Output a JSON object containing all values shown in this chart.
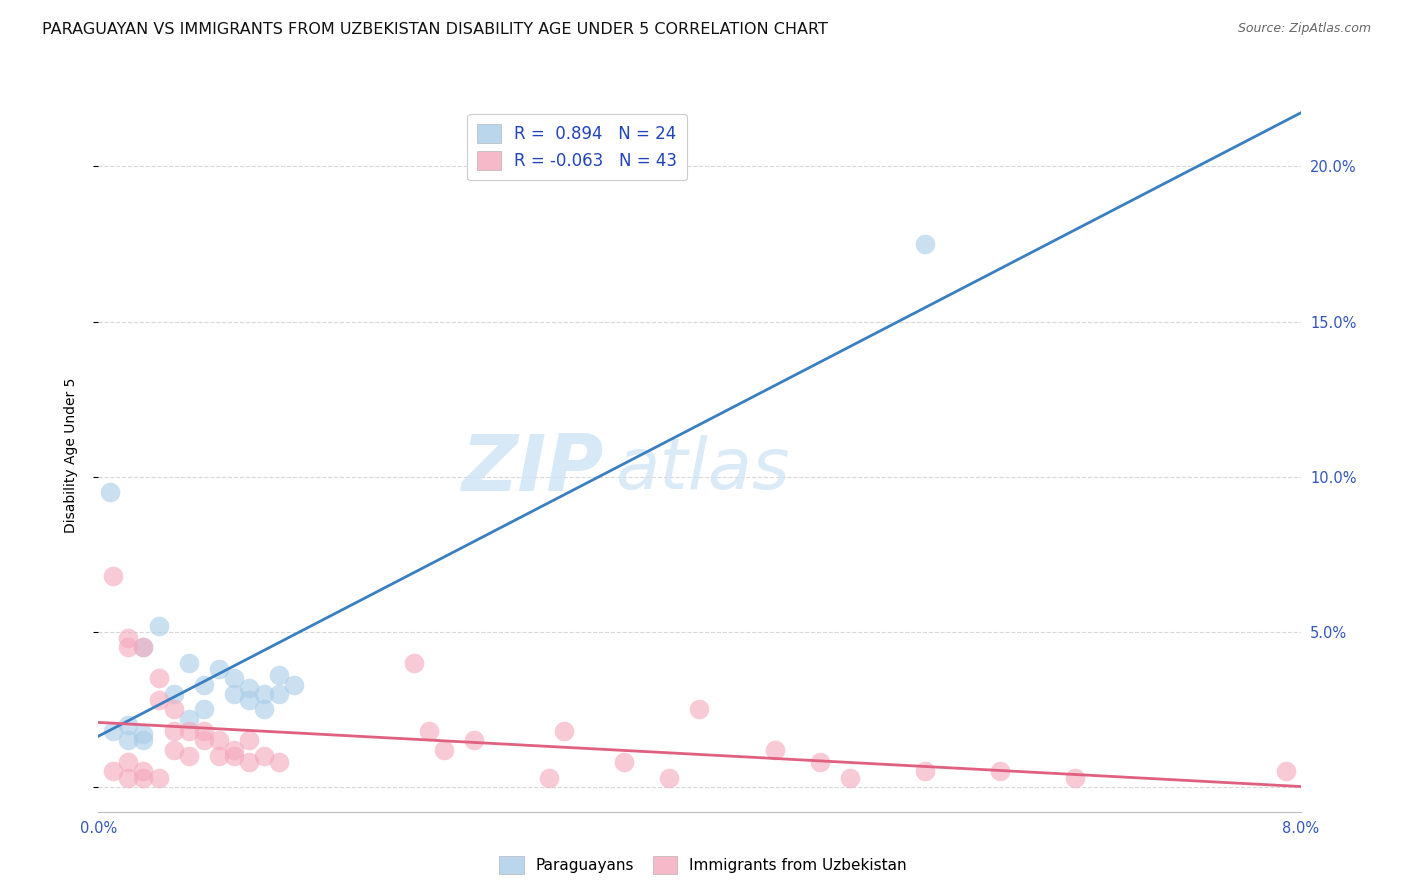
{
  "title": "PARAGUAYAN VS IMMIGRANTS FROM UZBEKISTAN DISABILITY AGE UNDER 5 CORRELATION CHART",
  "source": "Source: ZipAtlas.com",
  "ylabel": "Disability Age Under 5",
  "right_yticks": [
    "",
    "5.0%",
    "10.0%",
    "15.0%",
    "20.0%"
  ],
  "right_ytick_vals": [
    0.0,
    0.05,
    0.1,
    0.15,
    0.2
  ],
  "xlim": [
    0.0,
    0.08
  ],
  "ylim": [
    -0.008,
    0.222
  ],
  "watermark_line1": "ZIP",
  "watermark_line2": "atlas",
  "legend_labels": [
    "Paraguayans",
    "Immigrants from Uzbekistan"
  ],
  "blue_color": "#a8cce8",
  "pink_color": "#f4a8bc",
  "blue_line_color": "#3a7fc1",
  "pink_line_color": "#e06080",
  "blue_scatter": [
    [
      0.0008,
      0.095
    ],
    [
      0.003,
      0.045
    ],
    [
      0.004,
      0.052
    ],
    [
      0.005,
      0.03
    ],
    [
      0.006,
      0.04
    ],
    [
      0.006,
      0.022
    ],
    [
      0.007,
      0.025
    ],
    [
      0.007,
      0.033
    ],
    [
      0.008,
      0.038
    ],
    [
      0.009,
      0.03
    ],
    [
      0.009,
      0.035
    ],
    [
      0.01,
      0.028
    ],
    [
      0.01,
      0.032
    ],
    [
      0.011,
      0.025
    ],
    [
      0.011,
      0.03
    ],
    [
      0.012,
      0.036
    ],
    [
      0.012,
      0.03
    ],
    [
      0.013,
      0.033
    ],
    [
      0.001,
      0.018
    ],
    [
      0.002,
      0.015
    ],
    [
      0.002,
      0.02
    ],
    [
      0.003,
      0.015
    ],
    [
      0.003,
      0.017
    ],
    [
      0.055,
      0.175
    ]
  ],
  "pink_scatter": [
    [
      0.001,
      0.068
    ],
    [
      0.002,
      0.048
    ],
    [
      0.002,
      0.045
    ],
    [
      0.003,
      0.045
    ],
    [
      0.004,
      0.035
    ],
    [
      0.004,
      0.028
    ],
    [
      0.005,
      0.025
    ],
    [
      0.005,
      0.018
    ],
    [
      0.005,
      0.012
    ],
    [
      0.006,
      0.01
    ],
    [
      0.006,
      0.018
    ],
    [
      0.007,
      0.015
    ],
    [
      0.007,
      0.018
    ],
    [
      0.008,
      0.01
    ],
    [
      0.008,
      0.015
    ],
    [
      0.009,
      0.01
    ],
    [
      0.009,
      0.012
    ],
    [
      0.01,
      0.008
    ],
    [
      0.01,
      0.015
    ],
    [
      0.011,
      0.01
    ],
    [
      0.012,
      0.008
    ],
    [
      0.001,
      0.005
    ],
    [
      0.002,
      0.003
    ],
    [
      0.002,
      0.008
    ],
    [
      0.003,
      0.003
    ],
    [
      0.003,
      0.005
    ],
    [
      0.004,
      0.003
    ],
    [
      0.021,
      0.04
    ],
    [
      0.022,
      0.018
    ],
    [
      0.023,
      0.012
    ],
    [
      0.025,
      0.015
    ],
    [
      0.03,
      0.003
    ],
    [
      0.031,
      0.018
    ],
    [
      0.035,
      0.008
    ],
    [
      0.038,
      0.003
    ],
    [
      0.04,
      0.025
    ],
    [
      0.045,
      0.012
    ],
    [
      0.048,
      0.008
    ],
    [
      0.05,
      0.003
    ],
    [
      0.055,
      0.005
    ],
    [
      0.06,
      0.005
    ],
    [
      0.065,
      0.003
    ],
    [
      0.079,
      0.005
    ]
  ],
  "grid_color": "#d8d8d8",
  "background_color": "#ffffff",
  "title_fontsize": 11.5,
  "source_fontsize": 9,
  "axis_label_fontsize": 10,
  "tick_fontsize": 10.5
}
